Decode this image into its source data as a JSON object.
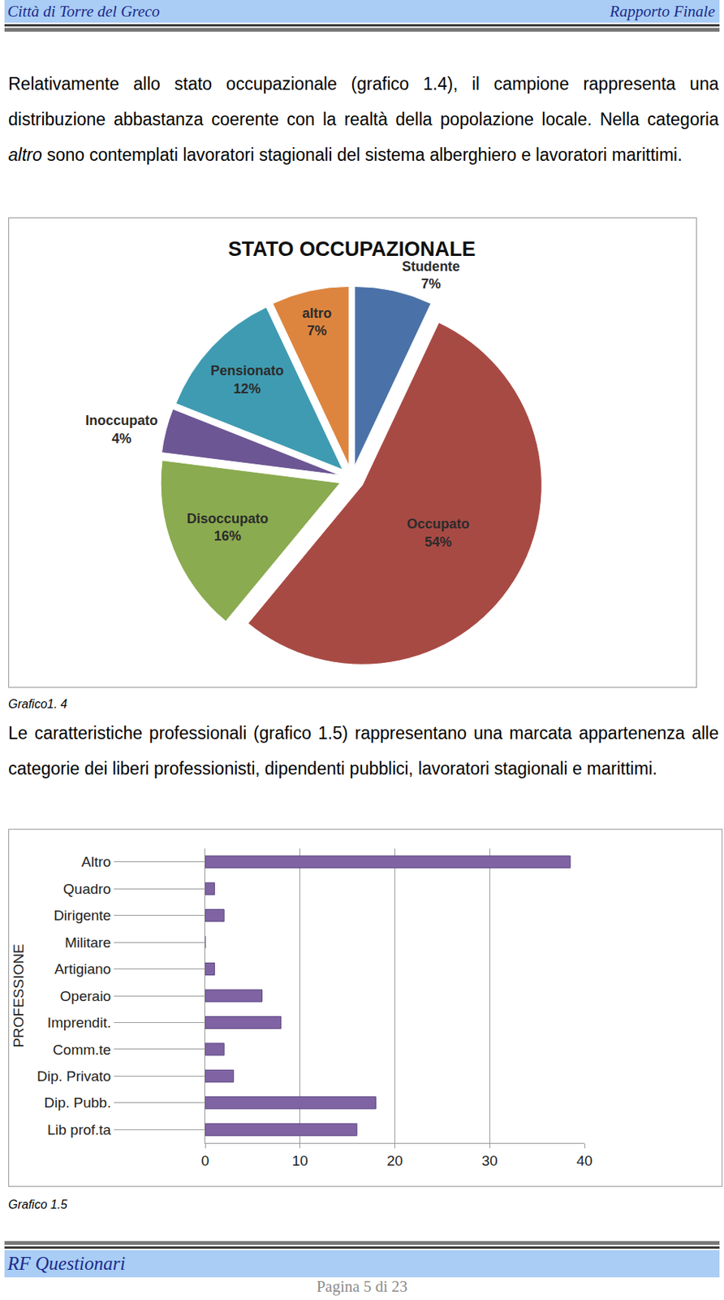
{
  "header": {
    "left": "Città di Torre del Greco",
    "right": "Rapporto Finale"
  },
  "paragraphs": [
    [
      {
        "text": "Relativamente allo stato occupazionale (grafico 1.4), il campione rappresenta una distribuzione abbastanza coerente con la realtà della popolazione locale. Nella categoria "
      },
      {
        "text": "altro",
        "italic": true
      },
      {
        "text": " sono contemplati lavoratori stagionali del sistema alberghiero e lavoratori marittimi."
      }
    ],
    [
      {
        "text": "Le caratteristiche professionali (grafico 1.5)  rappresentano una marcata appartenenza alle categorie dei liberi professionisti, dipendenti pubblici, lavoratori stagionali e marittimi."
      }
    ]
  ],
  "chart_data": [
    {
      "type": "pie",
      "title": "STATO OCCUPAZIONALE",
      "categories": [
        "Studente",
        "Occupato",
        "Disoccupato",
        "Inoccupato",
        "Pensionato",
        "altro"
      ],
      "values": [
        7,
        54,
        16,
        4,
        12,
        7
      ],
      "value_labels": [
        "7%",
        "54%",
        "16%",
        "4%",
        "12%",
        "7%"
      ],
      "colors": [
        "#4a72a8",
        "#a84a44",
        "#8aab4f",
        "#6c5694",
        "#3f9bb2",
        "#dd853e"
      ],
      "data_labels": true
    },
    {
      "type": "bar",
      "orientation": "horizontal",
      "ylabel": "PROFESSIONE",
      "categories": [
        "Altro",
        "Quadro",
        "Dirigente",
        "Militare",
        "Artigiano",
        "Operaio",
        "Imprendit.",
        "Comm.te",
        "Dip. Privato",
        "Dip. Pubb.",
        "Lib prof.ta"
      ],
      "values": [
        38.5,
        1,
        2,
        0,
        1,
        6,
        8,
        2,
        3,
        18,
        16
      ],
      "color": "#7f63a3",
      "xlim": [
        0,
        40
      ],
      "xticks": [
        0,
        10,
        20,
        30,
        40
      ],
      "grid": true
    }
  ],
  "captions": [
    "Grafico1. 4",
    "Grafico 1.5"
  ],
  "footer": {
    "left": "RF Questionari",
    "page": "Pagina 5 di 23"
  }
}
